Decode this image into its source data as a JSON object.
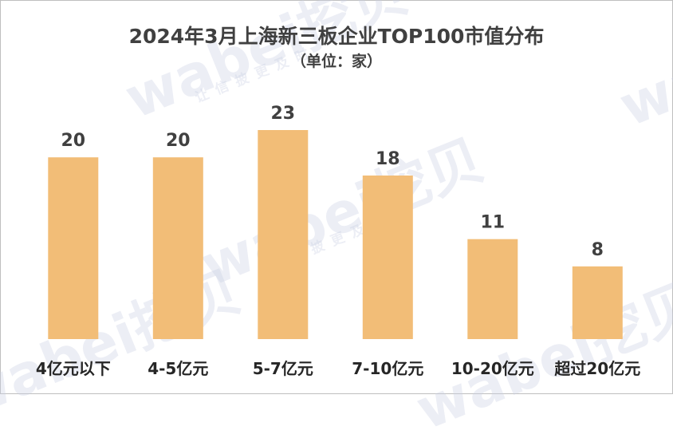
{
  "chart_data": {
    "type": "bar",
    "title": "2024年3月上海新三板企业TOP100市值分布",
    "subtitle": "（单位：家）",
    "categories": [
      "4亿元以下",
      "4-5亿元",
      "5-7亿元",
      "7-10亿元",
      "10-20亿元",
      "超过20亿元"
    ],
    "values": [
      20,
      20,
      23,
      18,
      11,
      8
    ],
    "xlabel": "",
    "ylabel": "",
    "ylim": [
      0,
      25
    ],
    "grid": false,
    "legend": "none",
    "bar_color": "#F2BD77"
  },
  "watermark": {
    "brand": "wabei挖贝",
    "slogan": "让信披更及时"
  }
}
